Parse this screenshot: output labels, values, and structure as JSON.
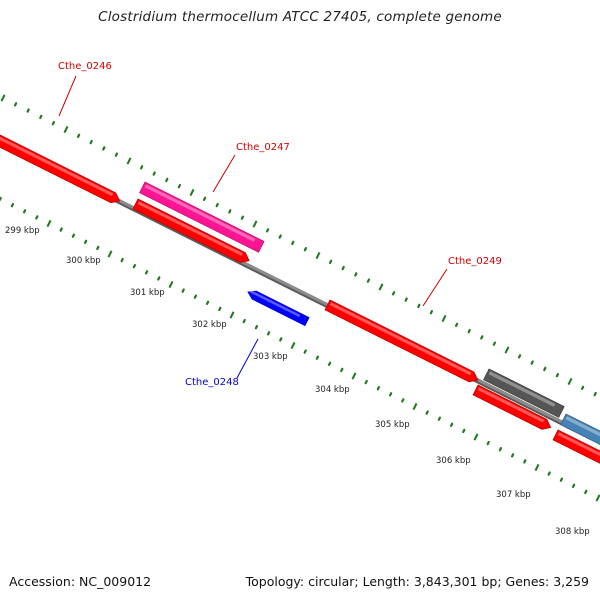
{
  "title": "Clostridium thermocellum ATCC 27405, complete genome",
  "footer": {
    "accession": "Accession: NC_009012",
    "stats": "Topology: circular; Length: 3,843,301 bp; Genes: 3,259"
  },
  "colors": {
    "background": "#ffffff",
    "backbone": "#8c8c8c",
    "tick": "#1f7a1f",
    "forward_gene": "#ff0000",
    "reverse_gene": "#0000ff",
    "rna_gene": "#ff1493",
    "other_gene_gray": "#555555",
    "other_gene_blue": "#4682b4",
    "label_red": "#cc0000",
    "label_blue": "#0000cc"
  },
  "scale": {
    "unit": "kbp",
    "labels": [
      "299 kbp",
      "300 kbp",
      "301 kbp",
      "302 kbp",
      "303 kbp",
      "304 kbp",
      "305 kbp",
      "306 kbp",
      "307 kbp",
      "308 kbp"
    ]
  },
  "genes": [
    {
      "label": "Cthe_0246",
      "strand": "forward",
      "color": "#ff0000",
      "labeled": true
    },
    {
      "label": "Cthe_0247",
      "strand": "forward",
      "color": "#ff0000",
      "labeled": true
    },
    {
      "label": "",
      "strand": "forward",
      "color": "#ff1493",
      "labeled": false
    },
    {
      "label": "Cthe_0248",
      "strand": "reverse",
      "color": "#0000ff",
      "labeled": true
    },
    {
      "label": "Cthe_0249",
      "strand": "forward",
      "color": "#ff0000",
      "labeled": true
    },
    {
      "label": "",
      "strand": "forward",
      "color": "#555555",
      "labeled": false
    },
    {
      "label": "",
      "strand": "forward",
      "color": "#ff0000",
      "labeled": false
    },
    {
      "label": "",
      "strand": "forward",
      "color": "#4682b4",
      "labeled": false
    },
    {
      "label": "",
      "strand": "forward",
      "color": "#ff0000",
      "labeled": false
    }
  ]
}
